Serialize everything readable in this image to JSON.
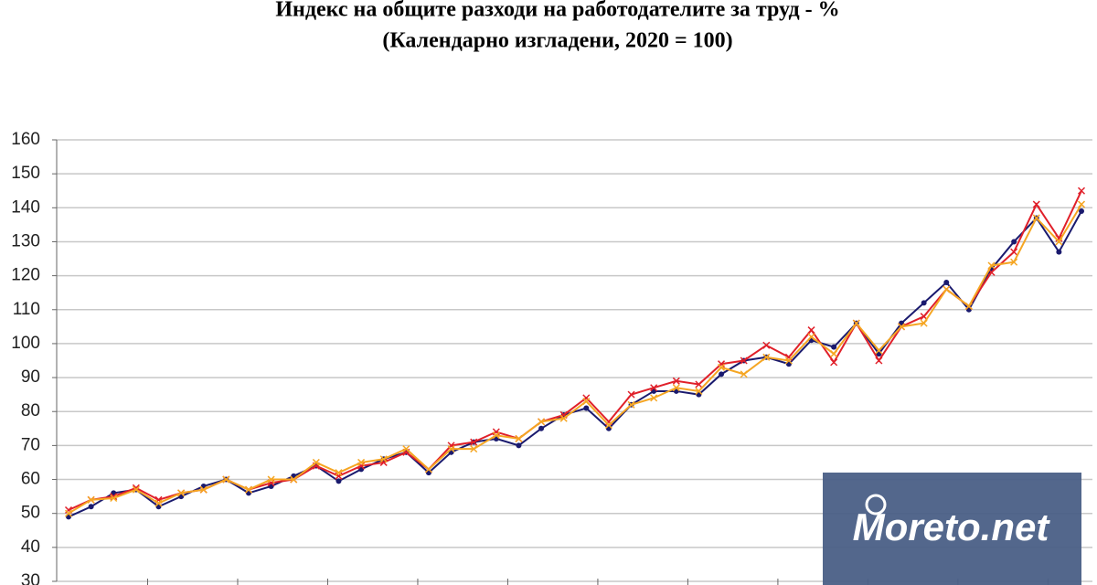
{
  "chart_data": {
    "type": "line",
    "title": "Индекс на общите разходи на работодателите за труд - %",
    "subtitle": "(Календарно изгладени, 2020 = 100)",
    "ylim": [
      30,
      160
    ],
    "yticks": [
      30,
      40,
      50,
      60,
      70,
      80,
      90,
      100,
      110,
      120,
      130,
      140,
      150,
      160
    ],
    "grid": true,
    "series": [
      {
        "color": "#1a1a6e",
        "marker": "dot",
        "values": [
          49,
          52,
          56,
          57,
          52,
          55,
          58,
          60,
          56,
          58,
          61,
          64,
          59.5,
          63,
          66,
          68,
          62,
          68,
          71,
          72,
          70,
          75,
          79,
          81,
          75,
          82,
          86,
          86,
          85,
          91,
          95,
          96,
          94,
          101,
          99,
          106,
          97,
          106,
          112,
          118,
          110,
          122,
          130,
          137,
          127,
          139
        ]
      },
      {
        "color": "#e0202a",
        "marker": "x",
        "values": [
          51,
          54,
          55,
          57.5,
          54,
          56,
          57,
          60,
          57,
          59,
          60,
          64,
          61,
          64,
          65,
          68,
          63,
          70,
          71,
          74,
          72,
          77,
          79,
          84,
          77,
          85,
          87,
          89,
          88,
          94,
          95,
          99.5,
          96,
          104,
          94.5,
          106,
          95,
          105,
          108,
          116,
          111,
          121,
          127,
          141,
          131,
          145
        ]
      },
      {
        "color": "#f5a623",
        "marker": "x",
        "values": [
          50,
          54,
          54.5,
          57,
          53,
          56,
          57,
          60,
          57,
          60,
          60,
          65,
          62,
          65,
          66,
          69,
          63,
          69,
          69,
          73,
          72,
          77,
          78,
          83,
          76,
          82,
          84,
          87,
          86,
          93,
          91,
          96,
          95,
          102,
          97,
          106,
          98,
          105,
          106,
          116,
          111,
          123,
          124,
          137,
          130,
          141
        ]
      }
    ],
    "watermark": "Moreto.net"
  }
}
